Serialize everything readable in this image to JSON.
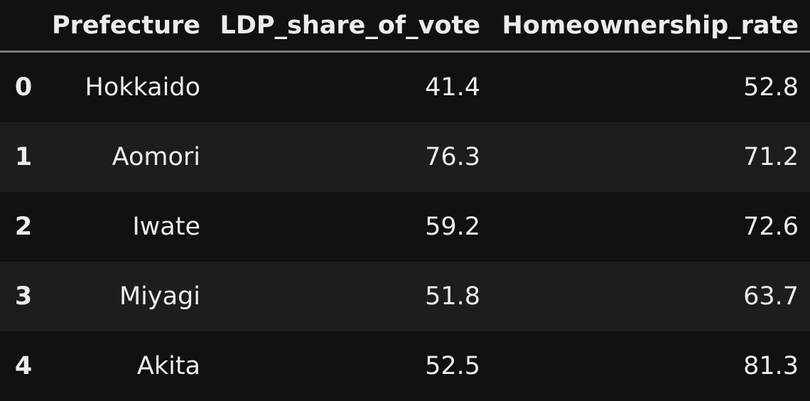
{
  "table": {
    "columns": [
      "Prefecture",
      "LDP_share_of_vote",
      "Homeownership_rate"
    ],
    "index": [
      0,
      1,
      2,
      3,
      4
    ],
    "rows": [
      [
        "Hokkaido",
        41.4,
        52.8
      ],
      [
        "Aomori",
        76.3,
        71.2
      ],
      [
        "Iwate",
        59.2,
        72.6
      ],
      [
        "Miyagi",
        51.8,
        63.7
      ],
      [
        "Akita",
        52.5,
        81.3
      ]
    ]
  }
}
